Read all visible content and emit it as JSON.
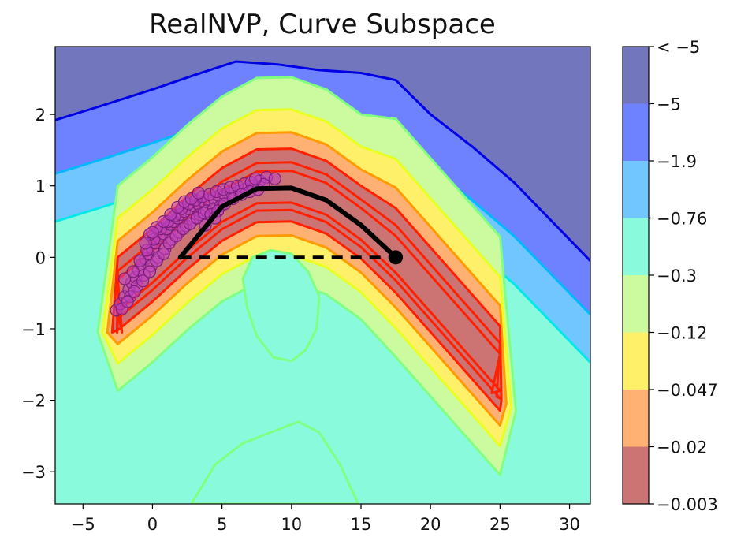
{
  "chart_data": {
    "type": "contour",
    "title": "RealNVP, Curve Subspace",
    "xlabel": "",
    "ylabel": "",
    "xlim": [
      -7,
      31.5
    ],
    "ylim": [
      -3.45,
      2.95
    ],
    "x_ticks": [
      -5,
      0,
      5,
      10,
      15,
      20,
      25,
      30
    ],
    "x_tick_labels": [
      "−5",
      "0",
      "5",
      "10",
      "15",
      "20",
      "25",
      "30"
    ],
    "y_ticks": [
      -3,
      -2,
      -1,
      0,
      1,
      2
    ],
    "y_tick_labels": [
      "−3",
      "−2",
      "−1",
      "0",
      "1",
      "2"
    ],
    "colorbar": {
      "levels": [
        {
          "label": "< −5",
          "fill": "#7277bd"
        },
        {
          "label": "−5",
          "fill": "#6e82ff"
        },
        {
          "label": "−1.9",
          "fill": "#72c6ff"
        },
        {
          "label": "−0.76",
          "fill": "#8afadd"
        },
        {
          "label": "−0.3",
          "fill": "#cbfa9f"
        },
        {
          "label": "−0.12",
          "fill": "#fff06a"
        },
        {
          "label": "−0.047",
          "fill": "#ffb174"
        },
        {
          "label": "−0.02",
          "fill": "#cc7474"
        },
        {
          "label": "−0.003",
          "fill": ""
        }
      ]
    },
    "contour_line_colors": [
      "#0000e6",
      "#00b8ff",
      "#00e8e8",
      "#80ff80",
      "#e8ff20",
      "#ff9a00",
      "#ff2000"
    ],
    "curve": {
      "name": "",
      "color": "#000000",
      "points": [
        [
          2.0,
          0.0
        ],
        [
          5.0,
          0.71
        ],
        [
          7.5,
          0.96
        ],
        [
          10.0,
          0.97
        ],
        [
          12.5,
          0.8
        ],
        [
          15.0,
          0.45
        ],
        [
          17.5,
          0.0
        ]
      ],
      "endpoint": [
        17.5,
        0.0
      ]
    },
    "chord": {
      "name": "",
      "style": "dashed",
      "color": "#000000",
      "points": [
        [
          2.0,
          0.0
        ],
        [
          17.5,
          0.0
        ]
      ]
    },
    "samples": {
      "name": "",
      "color": "#c040c0",
      "points": [
        [
          -2.6,
          -0.74
        ],
        [
          -2.3,
          -0.65
        ],
        [
          -2.0,
          -0.55
        ],
        [
          -1.7,
          -0.45
        ],
        [
          -1.5,
          -0.35
        ],
        [
          -1.2,
          -0.28
        ],
        [
          -1.0,
          -0.18
        ],
        [
          -0.8,
          -0.1
        ],
        [
          -0.5,
          -0.02
        ],
        [
          -0.3,
          0.05
        ],
        [
          0.0,
          0.12
        ],
        [
          0.2,
          0.2
        ],
        [
          0.5,
          0.27
        ],
        [
          0.8,
          0.33
        ],
        [
          1.0,
          0.4
        ],
        [
          1.3,
          0.46
        ],
        [
          1.5,
          0.5
        ],
        [
          1.8,
          0.55
        ],
        [
          2.0,
          0.6
        ],
        [
          2.3,
          0.64
        ],
        [
          2.6,
          0.68
        ],
        [
          3.0,
          0.72
        ],
        [
          3.3,
          0.75
        ],
        [
          3.7,
          0.78
        ],
        [
          4.0,
          0.8
        ],
        [
          4.4,
          0.83
        ],
        [
          4.8,
          0.86
        ],
        [
          5.2,
          0.88
        ],
        [
          5.7,
          0.9
        ],
        [
          6.2,
          0.93
        ],
        [
          6.7,
          0.96
        ],
        [
          7.2,
          1.0
        ],
        [
          7.7,
          1.07
        ],
        [
          8.2,
          1.12
        ],
        [
          8.8,
          1.1
        ],
        [
          -2.2,
          -0.72
        ],
        [
          -1.6,
          -0.55
        ],
        [
          -1.1,
          -0.4
        ],
        [
          -0.6,
          -0.25
        ],
        [
          -0.1,
          -0.12
        ],
        [
          0.4,
          0.0
        ],
        [
          0.9,
          0.12
        ],
        [
          1.4,
          0.25
        ],
        [
          1.9,
          0.35
        ],
        [
          2.4,
          0.44
        ],
        [
          2.9,
          0.52
        ],
        [
          3.4,
          0.6
        ],
        [
          3.9,
          0.65
        ],
        [
          4.4,
          0.68
        ],
        [
          4.9,
          0.72
        ],
        [
          -2.0,
          -0.3
        ],
        [
          -1.4,
          -0.2
        ],
        [
          -0.9,
          -0.05
        ],
        [
          -0.4,
          0.1
        ],
        [
          0.1,
          0.25
        ],
        [
          0.6,
          0.4
        ],
        [
          1.1,
          0.5
        ],
        [
          1.6,
          0.58
        ],
        [
          2.1,
          0.68
        ],
        [
          2.6,
          0.75
        ],
        [
          3.1,
          0.8
        ],
        [
          3.6,
          0.85
        ],
        [
          4.1,
          0.88
        ],
        [
          4.6,
          0.92
        ],
        [
          5.1,
          0.95
        ],
        [
          5.6,
          0.98
        ],
        [
          6.1,
          1.0
        ],
        [
          6.6,
          1.03
        ],
        [
          7.1,
          1.05
        ],
        [
          -0.2,
          0.32
        ],
        [
          0.3,
          0.42
        ],
        [
          0.8,
          0.5
        ],
        [
          1.3,
          0.6
        ],
        [
          1.8,
          0.7
        ],
        [
          2.3,
          0.78
        ],
        [
          2.8,
          0.82
        ],
        [
          3.3,
          0.9
        ],
        [
          -1.8,
          -0.62
        ],
        [
          -1.3,
          -0.48
        ],
        [
          -0.7,
          -0.33
        ],
        [
          -0.2,
          -0.2
        ],
        [
          0.3,
          -0.05
        ],
        [
          0.8,
          0.05
        ],
        [
          1.2,
          0.2
        ],
        [
          1.7,
          0.3
        ],
        [
          2.2,
          0.4
        ],
        [
          2.7,
          0.47
        ],
        [
          3.2,
          0.55
        ],
        [
          3.7,
          0.62
        ],
        [
          4.2,
          0.6
        ],
        [
          4.7,
          0.65
        ],
        [
          5.2,
          0.75
        ],
        [
          5.8,
          0.82
        ],
        [
          6.4,
          0.88
        ],
        [
          7.0,
          0.92
        ],
        [
          7.6,
          0.95
        ],
        [
          3.8,
          0.45
        ],
        [
          4.5,
          0.55
        ],
        [
          -0.5,
          0.2
        ],
        [
          0.0,
          0.35
        ],
        [
          8.0,
          1.02
        ],
        [
          7.4,
          1.1
        ]
      ]
    },
    "regions_note": ""
  }
}
